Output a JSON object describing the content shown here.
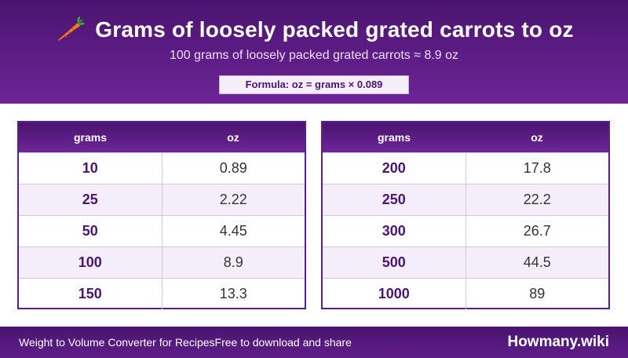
{
  "header": {
    "icon": "carrot-icon",
    "title": "Grams of loosely packed grated carrots to oz",
    "subtitle": "100 grams of loosely packed grated carrots ≈ 8.9 oz",
    "formula": "Formula: oz = grams × 0.089"
  },
  "tables": [
    {
      "columns": [
        "grams",
        "oz"
      ],
      "rows": [
        {
          "grams": "10",
          "oz": "0.89"
        },
        {
          "grams": "25",
          "oz": "2.22"
        },
        {
          "grams": "50",
          "oz": "4.45"
        },
        {
          "grams": "100",
          "oz": "8.9"
        },
        {
          "grams": "150",
          "oz": "13.3"
        }
      ]
    },
    {
      "columns": [
        "grams",
        "oz"
      ],
      "rows": [
        {
          "grams": "200",
          "oz": "17.8"
        },
        {
          "grams": "250",
          "oz": "22.2"
        },
        {
          "grams": "300",
          "oz": "26.7"
        },
        {
          "grams": "500",
          "oz": "44.5"
        },
        {
          "grams": "1000",
          "oz": "89"
        }
      ]
    }
  ],
  "footer": {
    "left_text": "Weight to Volume Converter for Recipes",
    "tagline": "Free to download and share",
    "brand": "Howmany.wiki"
  },
  "colors": {
    "primary": "#4a1470",
    "accent": "#6d2596",
    "row_alt": "#f4eefa"
  }
}
